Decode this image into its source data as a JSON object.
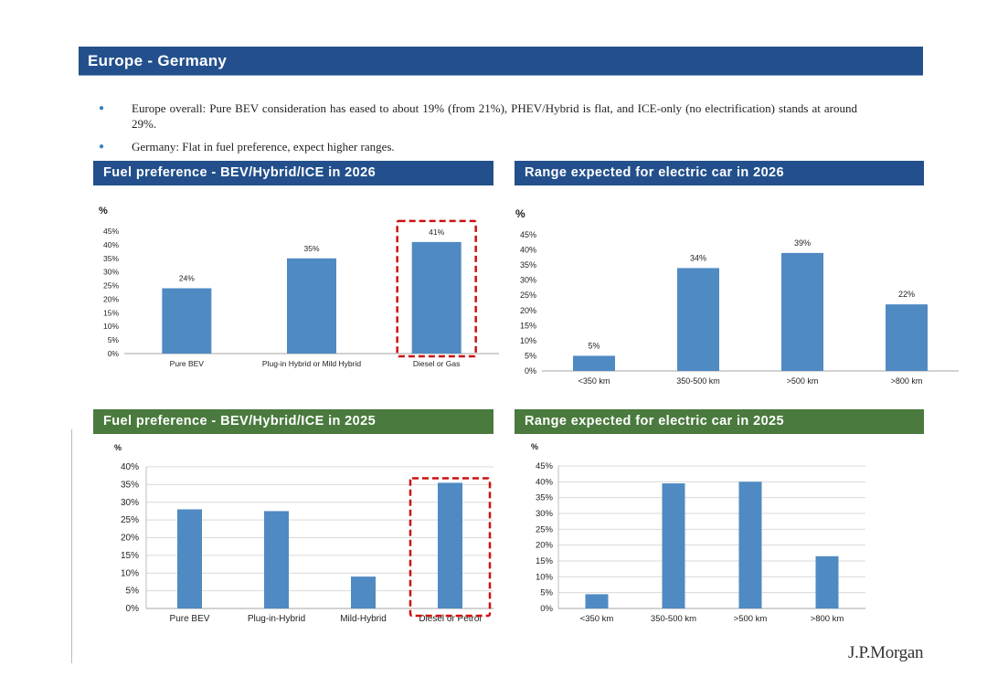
{
  "header": {
    "title": "Europe - Germany"
  },
  "bullets": [
    "Europe overall: Pure BEV consideration has eased to about 19% (from 21%), PHEV/Hybrid is flat, and ICE-only (no electrification) stands at around 29%.",
    "Germany: Flat in fuel preference, expect higher ranges."
  ],
  "sections": {
    "fuel_2026": "Fuel preference - BEV/Hybrid/ICE in 2026",
    "range_2026": "Range expected for electric car in 2026",
    "fuel_2025": "Fuel preference - BEV/Hybrid/ICE in 2025",
    "range_2025": "Range expected for electric car in 2025"
  },
  "logo": "J.P.Morgan",
  "colors": {
    "header_blue": "#23508c",
    "header_green": "#4a7a3e",
    "bar": "#4f8ac3",
    "highlight": "#cc1111"
  },
  "chart_data": [
    {
      "id": "fuel_2026",
      "type": "bar",
      "title": "Fuel preference - BEV/Hybrid/ICE in 2026",
      "ylabel": "%",
      "categories": [
        "Pure BEV",
        "Plug-in Hybrid or Mild Hybrid",
        "Diesel or Gas"
      ],
      "values": [
        24,
        35,
        41
      ],
      "data_labels": [
        "24%",
        "35%",
        "41%"
      ],
      "yticks": [
        "0%",
        "5%",
        "10%",
        "15%",
        "20%",
        "25%",
        "30%",
        "35%",
        "40%",
        "45%"
      ],
      "ylim": [
        0,
        45
      ],
      "highlight_index": 2
    },
    {
      "id": "range_2026",
      "type": "bar",
      "title": "Range expected for electric car in 2026",
      "ylabel": "%",
      "categories": [
        "<350 km",
        "350-500 km",
        ">500 km",
        ">800 km"
      ],
      "values": [
        5,
        34,
        39,
        22
      ],
      "data_labels": [
        "5%",
        "34%",
        "39%",
        "22%"
      ],
      "yticks": [
        "0%",
        "5%",
        "10%",
        "15%",
        "20%",
        "25%",
        "30%",
        "35%",
        "40%",
        "45%"
      ],
      "ylim": [
        0,
        45
      ]
    },
    {
      "id": "fuel_2025",
      "type": "bar",
      "title": "Fuel preference - BEV/Hybrid/ICE in 2025",
      "ylabel": "%",
      "categories": [
        "Pure BEV",
        "Plug-in-Hybrid",
        "Mild-Hybrid",
        "Diesel or Petrol"
      ],
      "values": [
        28,
        27.5,
        9,
        35.5
      ],
      "yticks": [
        "0%",
        "5%",
        "10%",
        "15%",
        "20%",
        "25%",
        "30%",
        "35%",
        "40%"
      ],
      "ylim": [
        0,
        40
      ],
      "gridlines": true,
      "highlight_index": 3
    },
    {
      "id": "range_2025",
      "type": "bar",
      "title": "Range expected for electric car in 2025",
      "ylabel": "%",
      "categories": [
        "<350 km",
        "350-500 km",
        ">500 km",
        ">800 km"
      ],
      "values": [
        4.5,
        39.5,
        40,
        16.5
      ],
      "yticks": [
        "0%",
        "5%",
        "10%",
        "15%",
        "20%",
        "25%",
        "30%",
        "35%",
        "40%",
        "45%"
      ],
      "ylim": [
        0,
        45
      ],
      "gridlines": true
    }
  ]
}
